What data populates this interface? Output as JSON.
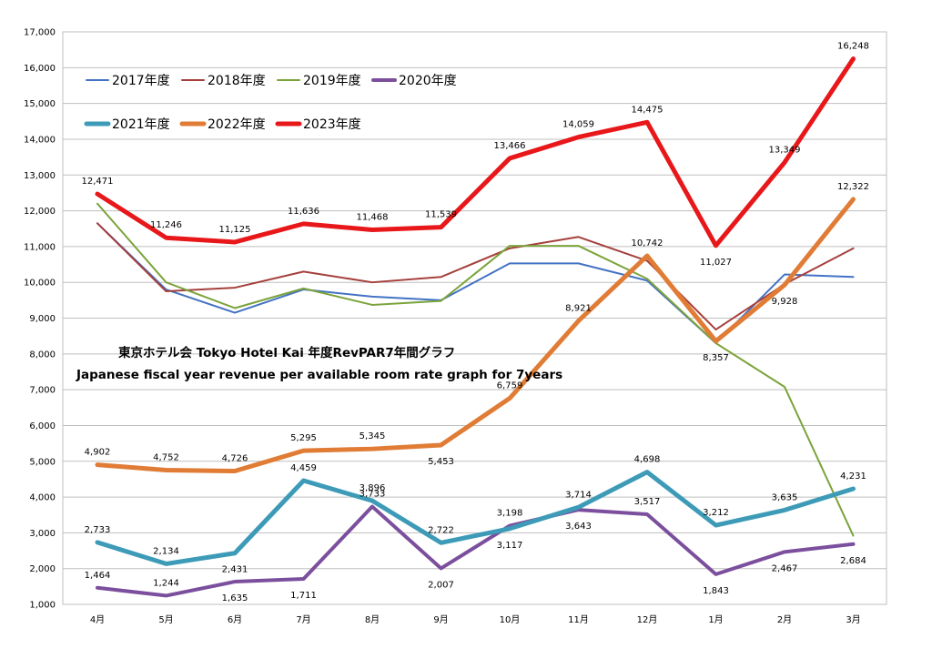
{
  "chart_data": {
    "type": "line",
    "title": "東京ホテル会 Tokyo Hotel Kai  年度RevPAR7年間グラフ",
    "subtitle": "Japanese fiscal year revenue per available room rate graph for 7years",
    "categories": [
      "4月",
      "5月",
      "6月",
      "7月",
      "8月",
      "9月",
      "10月",
      "11月",
      "12月",
      "1月",
      "2月",
      "3月"
    ],
    "ylim": [
      1000,
      17000
    ],
    "ytick_step": 1000,
    "grid": true,
    "legend_position": "top-left",
    "series": [
      {
        "name": "2017年度",
        "color": "#4472c4",
        "width": 2,
        "labeled": false,
        "values": [
          11650,
          9800,
          9150,
          9800,
          9600,
          9500,
          10530,
          10530,
          10050,
          8300,
          10220,
          10150
        ]
      },
      {
        "name": "2018年度",
        "color": "#a5403c",
        "width": 2,
        "labeled": false,
        "values": [
          11650,
          9750,
          9850,
          10300,
          10000,
          10150,
          10950,
          11270,
          10600,
          8680,
          9950,
          10950
        ]
      },
      {
        "name": "2019年度",
        "color": "#7ba33b",
        "width": 2,
        "labeled": false,
        "values": [
          12200,
          10000,
          9280,
          9830,
          9370,
          9480,
          11020,
          11020,
          10100,
          8300,
          7080,
          2920
        ]
      },
      {
        "name": "2020年度",
        "color": "#7b4f9d",
        "width": 4,
        "labeled": true,
        "values": [
          1464,
          1244,
          1635,
          1711,
          3733,
          2007,
          3198,
          3643,
          3517,
          1843,
          2467,
          2684
        ],
        "label_pos": [
          "above",
          "above",
          "below",
          "below",
          "above",
          "below",
          "above",
          "below",
          "above",
          "below",
          "below",
          "below"
        ]
      },
      {
        "name": "2021年度",
        "color": "#3d9bb8",
        "width": 5,
        "labeled": true,
        "values": [
          2733,
          2134,
          2431,
          4459,
          3896,
          2722,
          3117,
          3714,
          4698,
          3212,
          3635,
          4231
        ],
        "label_pos": [
          "above",
          "above",
          "below",
          "above",
          "above",
          "above",
          "below",
          "above",
          "above",
          "above",
          "above",
          "above"
        ]
      },
      {
        "name": "2022年度",
        "color": "#e07c35",
        "width": 5,
        "labeled": true,
        "values": [
          4902,
          4752,
          4726,
          5295,
          5345,
          5453,
          6759,
          8921,
          10742,
          8357,
          9928,
          12322
        ],
        "label_pos": [
          "above",
          "above",
          "above",
          "above",
          "above",
          "below",
          "above",
          "above",
          "above",
          "below",
          "below",
          "above"
        ]
      },
      {
        "name": "2023年度",
        "color": "#e8171a",
        "width": 5,
        "labeled": true,
        "values": [
          12471,
          11246,
          11125,
          11636,
          11468,
          11539,
          13466,
          14059,
          14475,
          11027,
          13349,
          16248
        ],
        "label_pos": [
          "above",
          "above",
          "above",
          "above",
          "above",
          "above",
          "above",
          "above",
          "above",
          "below",
          "above",
          "above"
        ]
      }
    ]
  }
}
